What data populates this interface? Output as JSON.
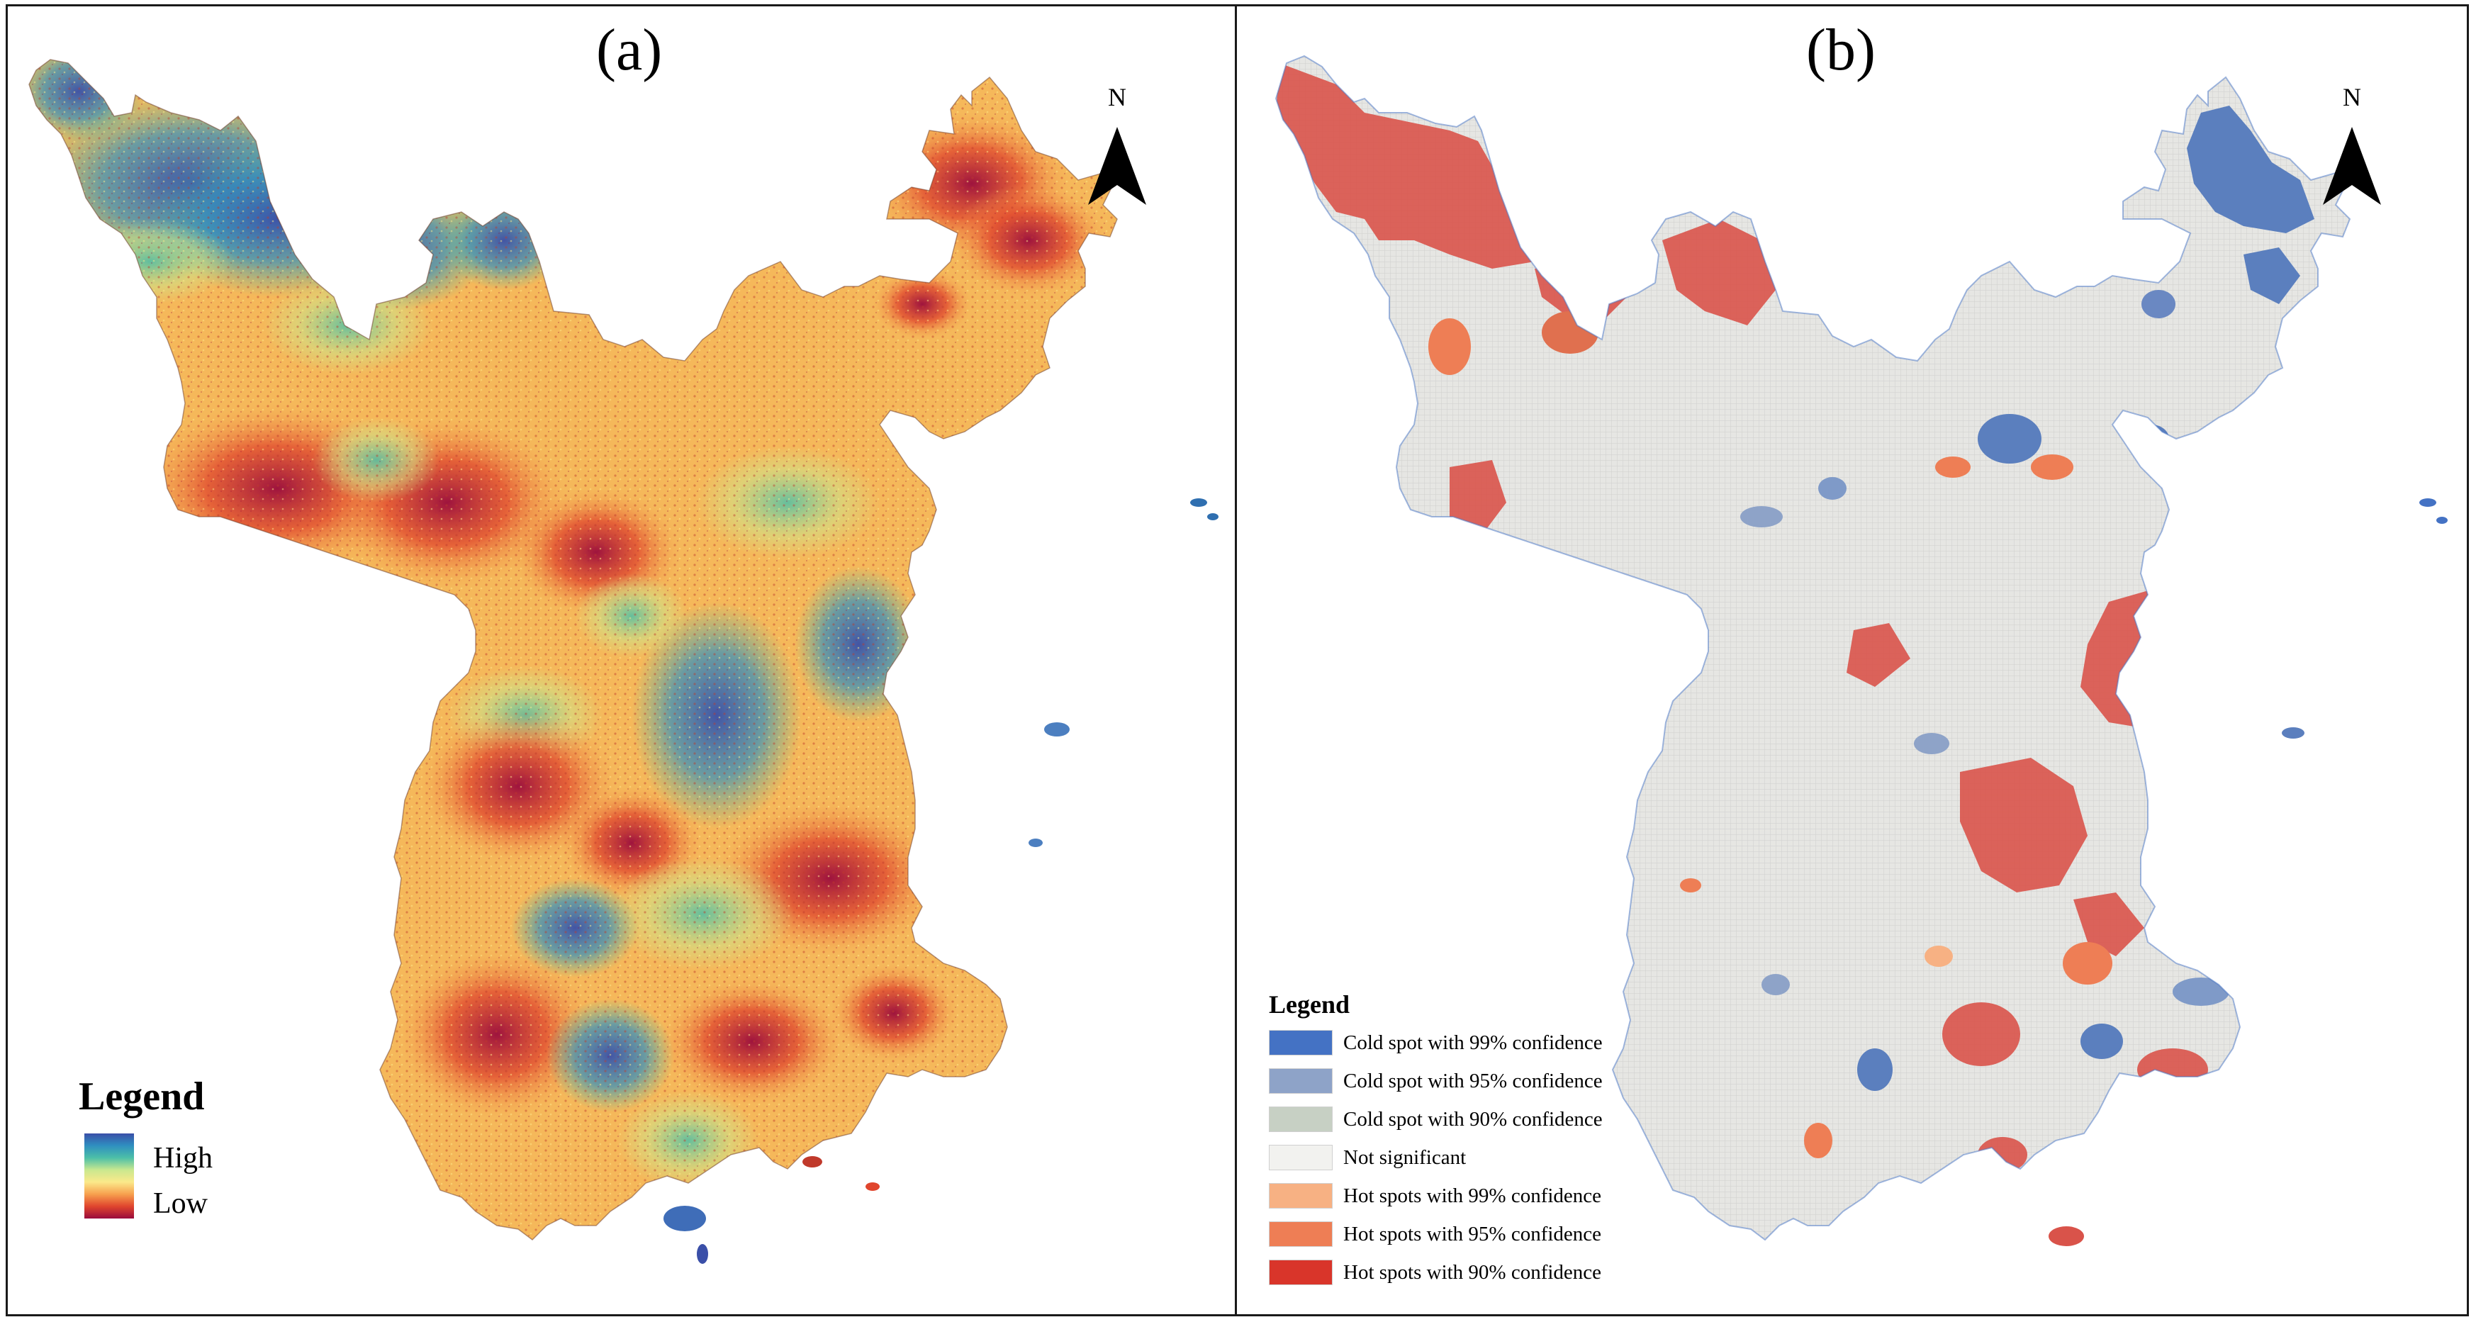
{
  "panels": {
    "a": {
      "label": "(a)",
      "north_label": "N",
      "legend": {
        "title": "Legend",
        "high_label": "High",
        "low_label": "Low",
        "ramp_colors": [
          "#3a4fa8",
          "#2f8fc0",
          "#4cbfa8",
          "#c9e88f",
          "#fbe98a",
          "#f7a04e",
          "#e0452d",
          "#9a0b3c"
        ]
      }
    },
    "b": {
      "label": "(b)",
      "north_label": "N",
      "legend": {
        "title": "Legend",
        "items": [
          {
            "label": "Cold spot with 99% confidence",
            "color": "#4472c4"
          },
          {
            "label": "Cold spot with 95% confidence",
            "color": "#8ea3c8"
          },
          {
            "label": "Cold spot with 90% confidence",
            "color": "#c7d0c4"
          },
          {
            "label": "Not significant",
            "color": "#f2f2ef"
          },
          {
            "label": "Hot spots with 99% confidence",
            "color": "#f7b183"
          },
          {
            "label": "Hot spots with 95% confidence",
            "color": "#ee7e55"
          },
          {
            "label": "Hot spots with 90% confidence",
            "color": "#d9352a"
          }
        ]
      }
    }
  }
}
